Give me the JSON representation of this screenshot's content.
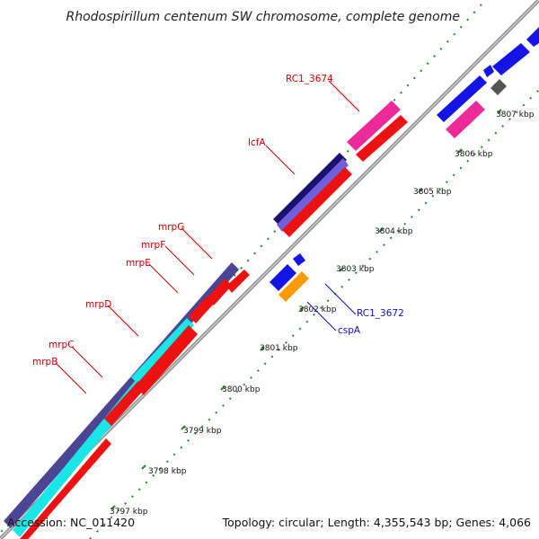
{
  "title": "Rhodospirillum centenum SW chromosome, complete genome",
  "accession_label": "Accession: NC_011420",
  "summary_label": "Topology: circular; Length: 4,355,543 bp; Genes: 4,066",
  "colors": {
    "backbone": "#8c8c8c",
    "dots": "#1e8c1e",
    "leader_red": "#d00000",
    "leader_blue": "#1010c8"
  },
  "ticks": [
    {
      "label": "3797 kbp",
      "pos": 3797
    },
    {
      "label": "3798 kbp",
      "pos": 3798
    },
    {
      "label": "3799 kbp",
      "pos": 3799
    },
    {
      "label": "3800 kbp",
      "pos": 3800
    },
    {
      "label": "3801 kbp",
      "pos": 3801
    },
    {
      "label": "3802 kbp",
      "pos": 3802
    },
    {
      "label": "3803 kbp",
      "pos": 3803
    },
    {
      "label": "3804 kbp",
      "pos": 3804
    },
    {
      "label": "3805 kbp",
      "pos": 3805
    },
    {
      "label": "3806 kbp",
      "pos": 3806
    },
    {
      "label": "3807 kbp",
      "pos": 3807
    }
  ],
  "gene_labels": [
    {
      "text": "mrpB",
      "side": "left",
      "color": "red"
    },
    {
      "text": "mrpC",
      "side": "left",
      "color": "red"
    },
    {
      "text": "mrpD",
      "side": "left",
      "color": "red"
    },
    {
      "text": "mrpE",
      "side": "left",
      "color": "red"
    },
    {
      "text": "mrpF",
      "side": "left",
      "color": "red"
    },
    {
      "text": "mrpG",
      "side": "left",
      "color": "red"
    },
    {
      "text": "lcfA",
      "side": "left",
      "color": "red"
    },
    {
      "text": "RC1_3674",
      "side": "left",
      "color": "red"
    },
    {
      "text": "RC1_3672",
      "side": "right",
      "color": "blue"
    },
    {
      "text": "cspA",
      "side": "right",
      "color": "blue"
    }
  ]
}
